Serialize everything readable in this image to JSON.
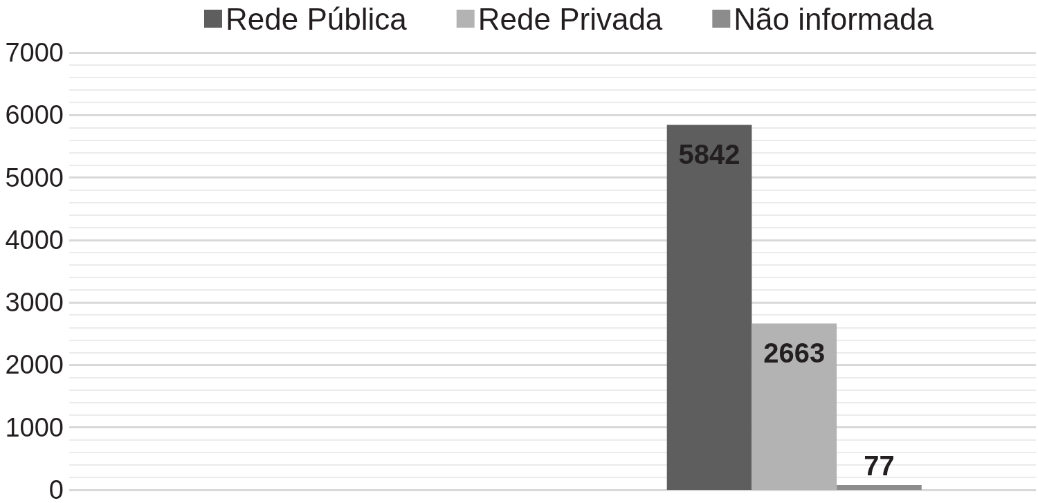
{
  "chart_data": {
    "type": "bar",
    "categories": [
      null,
      null
    ],
    "series": [
      {
        "name": "Rede Pública",
        "color": "#5e5e5e",
        "values": [
          null,
          5842
        ]
      },
      {
        "name": "Rede Privada",
        "color": "#b3b3b3",
        "values": [
          null,
          2663
        ]
      },
      {
        "name": "Não informada",
        "color": "#8c8c8c",
        "values": [
          null,
          77
        ]
      }
    ],
    "ylim": [
      0,
      7000
    ],
    "yticks": [
      0,
      1000,
      2000,
      3000,
      4000,
      5000,
      6000,
      7000
    ],
    "grid": "y",
    "legend": "top",
    "data_labels": true
  }
}
